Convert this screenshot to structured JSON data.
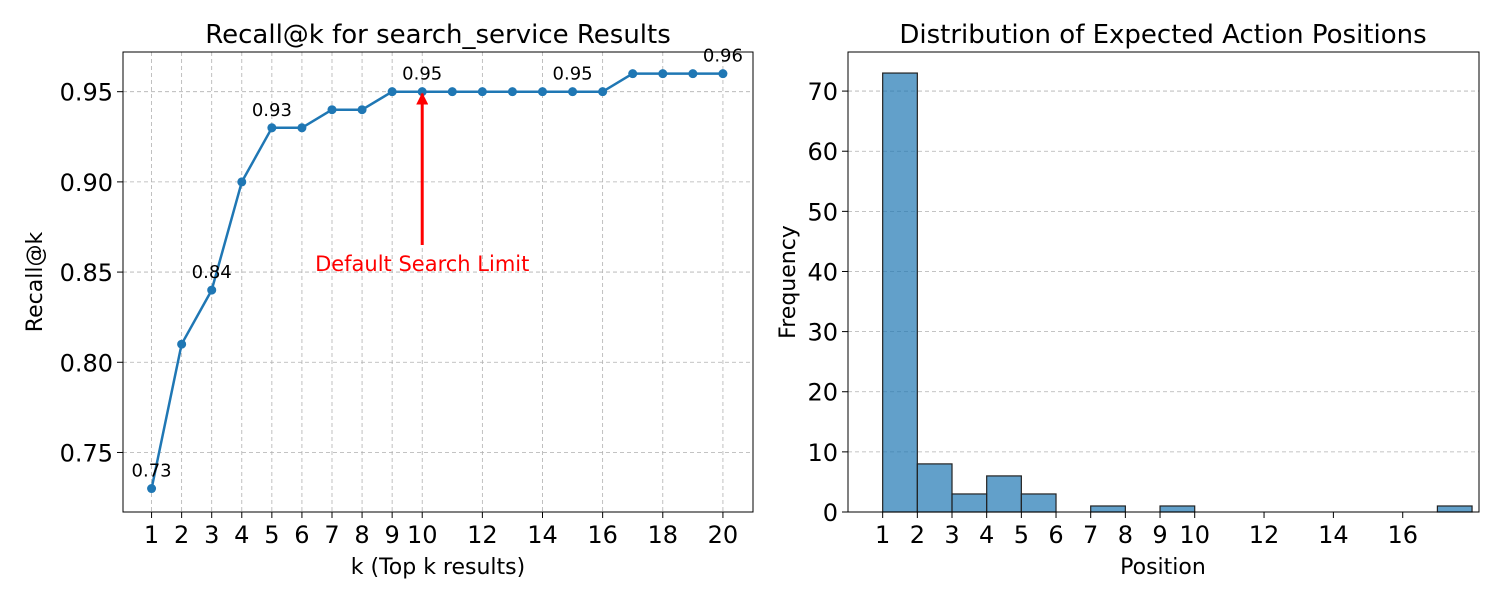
{
  "chart_data": [
    {
      "type": "line",
      "title": "Recall@k for search_service Results",
      "xlabel": "k (Top k results)",
      "ylabel": "Recall@k",
      "xlim": [
        0.05,
        21.0
      ],
      "ylim": [
        0.717,
        0.972
      ],
      "grid": true,
      "x_ticks": [
        1,
        2,
        3,
        4,
        5,
        6,
        7,
        8,
        9,
        10,
        12,
        14,
        16,
        18,
        20
      ],
      "y_ticks": [
        0.75,
        0.8,
        0.85,
        0.9,
        0.95
      ],
      "y_tick_labels": [
        "0.75",
        "0.80",
        "0.85",
        "0.90",
        "0.95"
      ],
      "color": "#1f77b4",
      "series": [
        {
          "x": [
            1,
            2,
            3,
            4,
            5,
            6,
            7,
            8,
            9,
            10,
            11,
            12,
            13,
            14,
            15,
            16,
            17,
            18,
            19,
            20
          ],
          "values": [
            0.73,
            0.81,
            0.84,
            0.9,
            0.93,
            0.93,
            0.94,
            0.94,
            0.95,
            0.95,
            0.95,
            0.95,
            0.95,
            0.95,
            0.95,
            0.95,
            0.96,
            0.96,
            0.96,
            0.96
          ]
        }
      ],
      "data_labels": [
        {
          "x": 1,
          "y": 0.73,
          "text": "0.73"
        },
        {
          "x": 3,
          "y": 0.84,
          "text": "0.84"
        },
        {
          "x": 5,
          "y": 0.93,
          "text": "0.93"
        },
        {
          "x": 10,
          "y": 0.95,
          "text": "0.95"
        },
        {
          "x": 15,
          "y": 0.95,
          "text": "0.95"
        },
        {
          "x": 20,
          "y": 0.96,
          "text": "0.96"
        }
      ],
      "annotation": {
        "text": "Default Search Limit",
        "x": 10,
        "y_tip": 0.95,
        "y_tail": 0.865,
        "color": "#ff0000"
      }
    },
    {
      "type": "bar",
      "title": "Distribution of Expected Action Positions",
      "xlabel": "Position",
      "ylabel": "Frequency",
      "xlim": [
        0.0,
        18.2
      ],
      "ylim": [
        0,
        76.5
      ],
      "grid": true,
      "grid_axis": "y",
      "x_ticks": [
        1,
        2,
        3,
        4,
        5,
        6,
        7,
        8,
        9,
        10,
        12,
        14,
        16
      ],
      "y_ticks": [
        0,
        10,
        20,
        30,
        40,
        50,
        60,
        70
      ],
      "color": "#1f77b4",
      "bar_alpha": 0.7,
      "bins": [
        {
          "start": 1,
          "end": 2,
          "value": 73
        },
        {
          "start": 2,
          "end": 3,
          "value": 8
        },
        {
          "start": 3,
          "end": 4,
          "value": 3
        },
        {
          "start": 4,
          "end": 5,
          "value": 6
        },
        {
          "start": 5,
          "end": 6,
          "value": 3
        },
        {
          "start": 7,
          "end": 8,
          "value": 1
        },
        {
          "start": 9,
          "end": 10,
          "value": 1
        },
        {
          "start": 17,
          "end": 18,
          "value": 1
        }
      ]
    }
  ]
}
